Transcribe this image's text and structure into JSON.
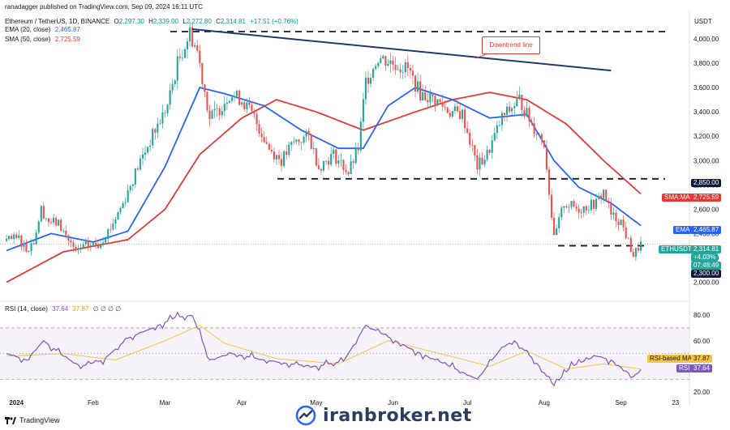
{
  "header": {
    "published": "ranadagger published on TradingView.com, Sep 09, 2024 16:11 UTC",
    "symbol": "Ethereum / TetherUS, 1D, BINANCE",
    "ohlc": {
      "o_label": "O",
      "o": "2,297.30",
      "h_label": "H",
      "h": "2,339.00",
      "l_label": "L",
      "l": "2,272.80",
      "c_label": "C",
      "c": "2,314.81",
      "change": "+17.51 (+0.76%)"
    },
    "ema_label": "EMA (20, close)",
    "ema_value": "2,465.87",
    "sma_label": "SMA (50, close)",
    "sma_value": "2,725.59",
    "rsi_label": "RSI (14, close)",
    "rsi_value": "37.64",
    "rsi_ma_value": "37.87",
    "rsi_extra": "∅ ∅ ∅ ∅"
  },
  "currency": "USDT",
  "annotations": {
    "downtrend": "Downtrend line"
  },
  "price_tags": {
    "level_high": "2,850.00",
    "sma_label": "SMA:MA",
    "sma_value": "2,725.59",
    "ema_label": "EMA",
    "ema_value": "2,465.87",
    "symbol_label": "ETHUSDT",
    "last_price": "2,314.81",
    "pct_change": "+4.03%",
    "countdown": "07:48:49",
    "level_low": "2,300.00",
    "rsi_ma_label": "RSI-based MA",
    "rsi_ma_value": "37.87",
    "rsi_label": "RSI",
    "rsi_value": "37.64"
  },
  "footer": {
    "brand": "iranbroker.net",
    "tv": "TradingView"
  },
  "colors": {
    "up": "#26a69a",
    "down": "#ef5350",
    "ema": "#2962ff",
    "sma": "#e53935",
    "rsi": "#7e57c2",
    "rsi_ma": "#f5c542",
    "trend": "#1e3a6e",
    "level": "#0d1a3a"
  },
  "chart_data": {
    "type": "candlestick",
    "title": "Ethereum / TetherUS, 1D, BINANCE",
    "y_axis_ticks": [
      "4,000.00",
      "3,800.00",
      "3,600.00",
      "3,400.00",
      "3,200.00",
      "3,000.00",
      "2,800.00",
      "2,600.00",
      "2,400.00",
      "2,200.00",
      "2,000.00"
    ],
    "ylim": [
      1950,
      4080
    ],
    "x_axis_ticks": [
      "2024",
      "Feb",
      "Mar",
      "Apr",
      "May",
      "Jun",
      "Jul",
      "Aug",
      "Sep",
      "23"
    ],
    "rsi_ticks": [
      "80.00",
      "60.00",
      "40.00",
      "20.00"
    ],
    "rsi_ylim": [
      15,
      87
    ],
    "rsi_band": [
      30,
      70
    ],
    "horizontal_levels": [
      4060,
      2850,
      2300
    ],
    "downtrend_line": {
      "from": {
        "x": "2024-03-12",
        "y": 4080
      },
      "to": {
        "x": "2024-08-28",
        "y": 3740
      }
    },
    "close_anchors": [
      [
        "2023-12-28",
        2340
      ],
      [
        "2024-01-02",
        2360
      ],
      [
        "2024-01-05",
        2270
      ],
      [
        "2024-01-08",
        2340
      ],
      [
        "2024-01-11",
        2600
      ],
      [
        "2024-01-14",
        2500
      ],
      [
        "2024-01-18",
        2480
      ],
      [
        "2024-01-22",
        2350
      ],
      [
        "2024-01-25",
        2240
      ],
      [
        "2024-01-29",
        2300
      ],
      [
        "2024-02-03",
        2310
      ],
      [
        "2024-02-08",
        2450
      ],
      [
        "2024-02-13",
        2650
      ],
      [
        "2024-02-19",
        2950
      ],
      [
        "2024-02-26",
        3250
      ],
      [
        "2024-03-02",
        3450
      ],
      [
        "2024-03-06",
        3800
      ],
      [
        "2024-03-11",
        4050
      ],
      [
        "2024-03-14",
        3900
      ],
      [
        "2024-03-19",
        3350
      ],
      [
        "2024-03-22",
        3400
      ],
      [
        "2024-03-27",
        3550
      ],
      [
        "2024-04-01",
        3500
      ],
      [
        "2024-04-06",
        3350
      ],
      [
        "2024-04-12",
        3100
      ],
      [
        "2024-04-17",
        3000
      ],
      [
        "2024-04-22",
        3150
      ],
      [
        "2024-04-28",
        3200
      ],
      [
        "2024-05-02",
        2950
      ],
      [
        "2024-05-08",
        3050
      ],
      [
        "2024-05-14",
        2900
      ],
      [
        "2024-05-18",
        3100
      ],
      [
        "2024-05-21",
        3650
      ],
      [
        "2024-05-26",
        3850
      ],
      [
        "2024-06-01",
        3800
      ],
      [
        "2024-06-07",
        3750
      ],
      [
        "2024-06-12",
        3550
      ],
      [
        "2024-06-18",
        3500
      ],
      [
        "2024-06-24",
        3400
      ],
      [
        "2024-06-29",
        3380
      ],
      [
        "2024-07-05",
        2950
      ],
      [
        "2024-07-09",
        3050
      ],
      [
        "2024-07-15",
        3350
      ],
      [
        "2024-07-22",
        3500
      ],
      [
        "2024-07-27",
        3300
      ],
      [
        "2024-08-01",
        3150
      ],
      [
        "2024-08-05",
        2350
      ],
      [
        "2024-08-09",
        2650
      ],
      [
        "2024-08-15",
        2600
      ],
      [
        "2024-08-22",
        2650
      ],
      [
        "2024-08-25",
        2750
      ],
      [
        "2024-08-28",
        2550
      ],
      [
        "2024-09-01",
        2500
      ],
      [
        "2024-09-06",
        2220
      ],
      [
        "2024-09-09",
        2315
      ]
    ],
    "ema20_anchors": [
      [
        "2023-12-28",
        2260
      ],
      [
        "2024-01-15",
        2400
      ],
      [
        "2024-02-01",
        2330
      ],
      [
        "2024-02-15",
        2420
      ],
      [
        "2024-03-01",
        2950
      ],
      [
        "2024-03-15",
        3600
      ],
      [
        "2024-03-25",
        3550
      ],
      [
        "2024-04-10",
        3450
      ],
      [
        "2024-04-25",
        3250
      ],
      [
        "2024-05-10",
        3100
      ],
      [
        "2024-05-20",
        3100
      ],
      [
        "2024-05-30",
        3450
      ],
      [
        "2024-06-10",
        3600
      ],
      [
        "2024-06-25",
        3500
      ],
      [
        "2024-07-10",
        3350
      ],
      [
        "2024-07-25",
        3380
      ],
      [
        "2024-08-05",
        3000
      ],
      [
        "2024-08-15",
        2780
      ],
      [
        "2024-08-28",
        2650
      ],
      [
        "2024-09-09",
        2466
      ]
    ],
    "sma50_anchors": [
      [
        "2023-12-28",
        2000
      ],
      [
        "2024-01-20",
        2250
      ],
      [
        "2024-02-15",
        2350
      ],
      [
        "2024-03-01",
        2600
      ],
      [
        "2024-03-15",
        3050
      ],
      [
        "2024-04-01",
        3350
      ],
      [
        "2024-04-15",
        3500
      ],
      [
        "2024-05-01",
        3400
      ],
      [
        "2024-05-20",
        3250
      ],
      [
        "2024-06-10",
        3400
      ],
      [
        "2024-06-25",
        3500
      ],
      [
        "2024-07-10",
        3560
      ],
      [
        "2024-07-25",
        3500
      ],
      [
        "2024-08-10",
        3300
      ],
      [
        "2024-08-25",
        3000
      ],
      [
        "2024-09-09",
        2726
      ]
    ],
    "rsi_anchors": [
      [
        "2023-12-28",
        50
      ],
      [
        "2024-01-05",
        45
      ],
      [
        "2024-01-12",
        60
      ],
      [
        "2024-01-20",
        48
      ],
      [
        "2024-01-27",
        40
      ],
      [
        "2024-02-05",
        45
      ],
      [
        "2024-02-15",
        62
      ],
      [
        "2024-02-25",
        70
      ],
      [
        "2024-03-05",
        78
      ],
      [
        "2024-03-12",
        80
      ],
      [
        "2024-03-19",
        45
      ],
      [
        "2024-03-28",
        50
      ],
      [
        "2024-04-10",
        45
      ],
      [
        "2024-04-20",
        42
      ],
      [
        "2024-05-01",
        40
      ],
      [
        "2024-05-12",
        44
      ],
      [
        "2024-05-21",
        72
      ],
      [
        "2024-05-28",
        65
      ],
      [
        "2024-06-10",
        52
      ],
      [
        "2024-06-24",
        40
      ],
      [
        "2024-07-05",
        30
      ],
      [
        "2024-07-15",
        55
      ],
      [
        "2024-07-20",
        60
      ],
      [
        "2024-07-28",
        45
      ],
      [
        "2024-08-05",
        25
      ],
      [
        "2024-08-12",
        40
      ],
      [
        "2024-08-22",
        48
      ],
      [
        "2024-08-28",
        45
      ],
      [
        "2024-09-06",
        32
      ],
      [
        "2024-09-09",
        37.64
      ]
    ],
    "rsi_ma_anchors": [
      [
        "2023-12-28",
        48
      ],
      [
        "2024-01-20",
        50
      ],
      [
        "2024-02-10",
        45
      ],
      [
        "2024-03-01",
        60
      ],
      [
        "2024-03-15",
        72
      ],
      [
        "2024-03-25",
        58
      ],
      [
        "2024-04-15",
        46
      ],
      [
        "2024-05-10",
        42
      ],
      [
        "2024-05-30",
        60
      ],
      [
        "2024-06-20",
        50
      ],
      [
        "2024-07-10",
        40
      ],
      [
        "2024-07-25",
        52
      ],
      [
        "2024-08-10",
        38
      ],
      [
        "2024-08-25",
        42
      ],
      [
        "2024-09-09",
        37.87
      ]
    ],
    "last_price": 2314.81,
    "ema20": 2465.87,
    "sma50": 2725.59,
    "rsi": 37.64,
    "rsi_ma": 37.87
  }
}
